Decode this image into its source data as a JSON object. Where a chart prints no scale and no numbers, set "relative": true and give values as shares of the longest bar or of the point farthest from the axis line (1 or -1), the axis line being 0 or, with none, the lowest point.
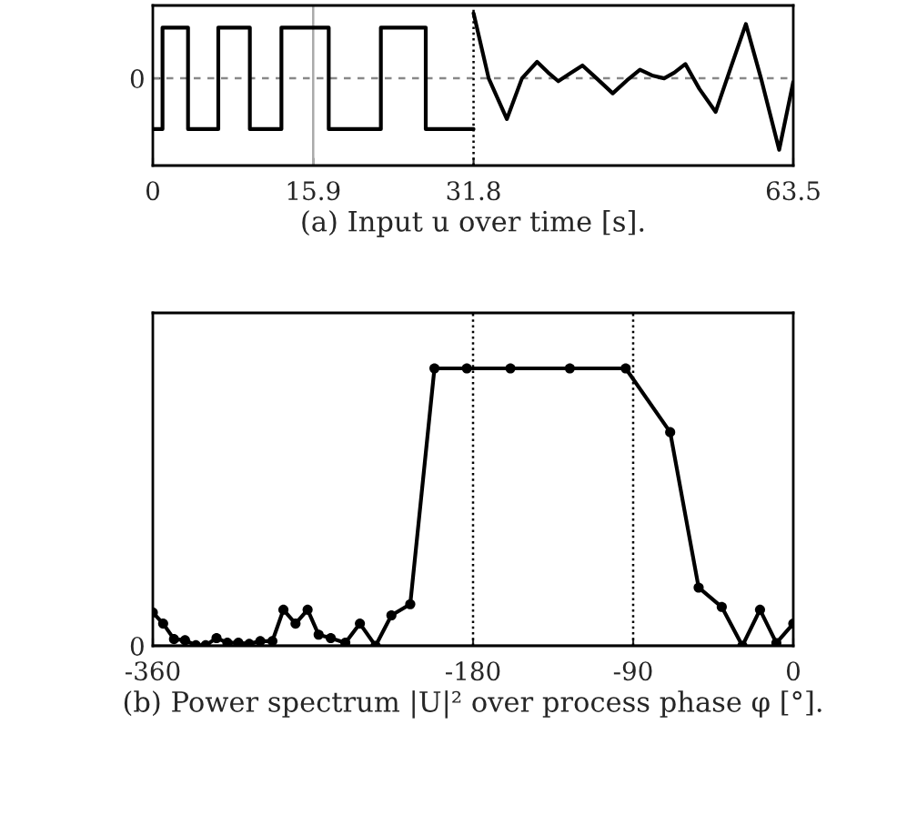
{
  "chart_data": [
    {
      "type": "line",
      "xlabel": "(a) Input u over time [s].",
      "relative": true,
      "xlim": [
        0,
        63.5
      ],
      "xticks": [
        0,
        15.9,
        31.8,
        63.5
      ],
      "grid": false,
      "legend": false,
      "marker": "none",
      "ref_lines": [
        {
          "axis": "y",
          "value": 0,
          "label": "0",
          "line_style": "dashed",
          "color": "#888888"
        },
        {
          "axis": "x",
          "value": 15.9,
          "label": null,
          "line_style": "solid",
          "color": "#aaaaaa"
        },
        {
          "axis": "x",
          "value": 31.8,
          "label": null,
          "line_style": "dotted",
          "color": "#000000"
        }
      ],
      "series": [
        {
          "type": "step",
          "color": "#000000",
          "x": [
            0,
            0.96,
            3.49,
            6.49,
            9.62,
            12.75,
            17.44,
            22.61,
            27.06,
            31.8
          ],
          "values": [
            -0.71,
            0.71,
            -0.71,
            0.71,
            -0.71,
            0.71,
            -0.71,
            0.71,
            -0.71,
            -0.71
          ]
        },
        {
          "type": "line",
          "color": "#000000",
          "x": [
            31.8,
            33.3,
            35.1,
            36.6,
            38.1,
            39.2,
            40.2,
            41.4,
            42.6,
            44.0,
            45.6,
            47.0,
            48.3,
            49.5,
            50.7,
            51.7,
            52.8,
            54.2,
            55.8,
            57.3,
            58.8,
            60.3,
            62.1,
            63.5
          ],
          "values": [
            0.91,
            0.0,
            -0.57,
            0.0,
            0.23,
            0.08,
            -0.04,
            0.07,
            0.18,
            0.0,
            -0.21,
            -0.03,
            0.12,
            0.04,
            0.0,
            0.08,
            0.2,
            -0.15,
            -0.47,
            0.15,
            0.76,
            0.0,
            -1.0,
            -0.05
          ]
        }
      ]
    },
    {
      "type": "line",
      "xlabel": "(b) Power spectrum |U|² over process phase φ [°].",
      "relative": true,
      "xlim": [
        -360,
        0
      ],
      "xticks": [
        -360,
        -180,
        -90,
        0
      ],
      "grid": false,
      "legend": false,
      "marker": "circle",
      "line_style": "solid",
      "ref_lines": [
        {
          "axis": "y",
          "value": 0,
          "label": "0",
          "line_style": "solid",
          "color": "#000000"
        },
        {
          "axis": "x",
          "value": -180,
          "label": null,
          "line_style": "dotted",
          "color": "#000000"
        },
        {
          "axis": "x",
          "value": -90,
          "label": null,
          "line_style": "dotted",
          "color": "#000000"
        }
      ],
      "series": [
        {
          "color": "#000000",
          "x": [
            -360,
            -354.2,
            -348.1,
            -341.9,
            -335.8,
            -330.3,
            -324.2,
            -318.1,
            -311.9,
            -305.8,
            -299.6,
            -292.8,
            -286.6,
            -279.8,
            -273.0,
            -266.8,
            -260.0,
            -251.8,
            -243.6,
            -234.8,
            -225.9,
            -215.3,
            -201.7,
            -183.5,
            -159,
            -125.6,
            -94.2,
            -69.2,
            -53.2,
            -40.2,
            -28.6,
            -18.7,
            -9.5,
            0
          ],
          "values": [
            0.12,
            0.08,
            0.024,
            0.02,
            0.002,
            0.002,
            0.028,
            0.011,
            0.011,
            0.007,
            0.017,
            0.017,
            0.13,
            0.08,
            0.13,
            0.04,
            0.028,
            0.011,
            0.08,
            0,
            0.11,
            0.15,
            1,
            1,
            1,
            1,
            1,
            0.77,
            0.21,
            0.14,
            0,
            0.13,
            0.01,
            0.08
          ]
        }
      ]
    }
  ]
}
